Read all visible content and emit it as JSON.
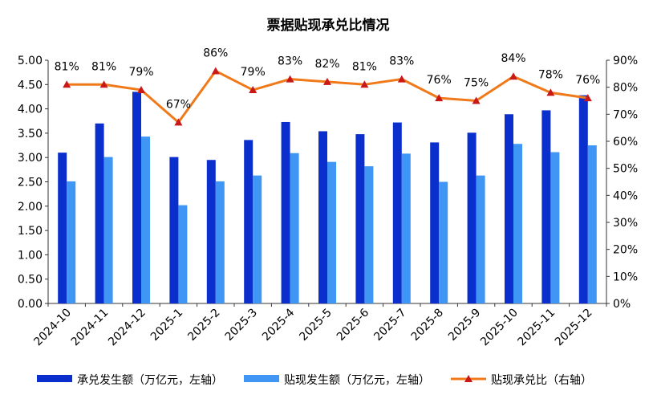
{
  "chart_data": {
    "type": "bar",
    "title": "票据贴现承兑比情况",
    "categories": [
      "2024-10",
      "2024-11",
      "2024-12",
      "2025-1",
      "2025-2",
      "2025-3",
      "2025-4",
      "2025-5",
      "2025-6",
      "2025-7",
      "2025-8",
      "2025-9",
      "2025-10",
      "2025-11",
      "2025-12"
    ],
    "series": [
      {
        "name": "承兑发生额（万亿元，左轴）",
        "type": "bar",
        "axis": "left",
        "color": "#0b2fcc",
        "values": [
          3.1,
          3.7,
          4.35,
          3.01,
          2.95,
          3.36,
          3.73,
          3.54,
          3.48,
          3.72,
          3.31,
          3.51,
          3.89,
          3.97,
          4.28
        ]
      },
      {
        "name": "贴现发生额（万亿元，左轴）",
        "type": "bar",
        "axis": "left",
        "color": "#3f96f4",
        "values": [
          2.51,
          3.01,
          3.43,
          2.02,
          2.51,
          2.63,
          3.09,
          2.91,
          2.82,
          3.08,
          2.5,
          2.63,
          3.28,
          3.11,
          3.25
        ]
      },
      {
        "name": "贴现承兑比（右轴）",
        "type": "line",
        "axis": "right",
        "color": "#f07a1a",
        "marker_color": "#c81818",
        "values": [
          81,
          81,
          79,
          67,
          86,
          79,
          83,
          82,
          81,
          83,
          76,
          75,
          84,
          78,
          76
        ],
        "labels": [
          "81%",
          "81%",
          "79%",
          "67%",
          "86%",
          "79%",
          "83%",
          "82%",
          "81%",
          "83%",
          "76%",
          "75%",
          "84%",
          "78%",
          "76%"
        ]
      }
    ],
    "left_axis": {
      "min": 0,
      "max": 5,
      "ticks": [
        "0.00",
        "0.50",
        "1.00",
        "1.50",
        "2.00",
        "2.50",
        "3.00",
        "3.50",
        "4.00",
        "4.50",
        "5.00"
      ]
    },
    "right_axis": {
      "min": 0,
      "max": 90,
      "ticks": [
        "0%",
        "10%",
        "20%",
        "30%",
        "40%",
        "50%",
        "60%",
        "70%",
        "80%",
        "90%"
      ]
    },
    "legend_position": "bottom",
    "grid": false
  }
}
